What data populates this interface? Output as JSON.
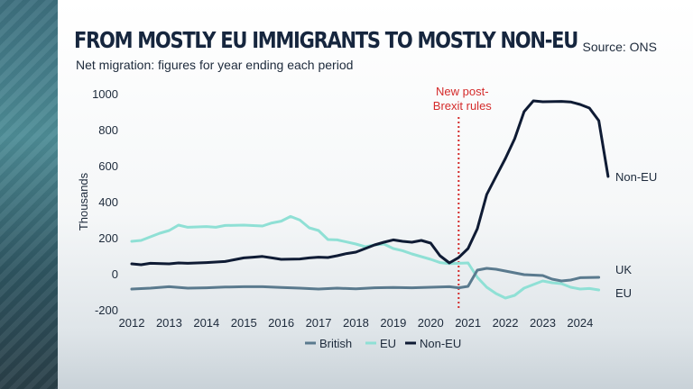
{
  "title": "FROM MOSTLY EU IMMIGRANTS TO MOSTLY NON-EU",
  "subtitle": "Net migration: figures for year ending each period",
  "source": "Source: ONS",
  "chart_data": {
    "type": "line",
    "ylabel": "Thousands",
    "ylim": [
      -200,
      1000
    ],
    "yticks": [
      1000,
      800,
      600,
      400,
      200,
      0,
      -200
    ],
    "xlim": [
      2012,
      2024.8
    ],
    "xticks": [
      2012,
      2013,
      2014,
      2015,
      2016,
      2017,
      2018,
      2019,
      2020,
      2021,
      2022,
      2023,
      2024
    ],
    "grid": false,
    "legend_position": "bottom-center",
    "annotation": {
      "x": 2020.75,
      "lines": [
        "New post-",
        "Brexit rules"
      ],
      "color": "#d42b2b"
    },
    "series": [
      {
        "name": "British",
        "end_label": "UK",
        "color": "#5a7a8e",
        "points": [
          [
            2012,
            -85
          ],
          [
            2012.5,
            -80
          ],
          [
            2013,
            -72
          ],
          [
            2013.5,
            -80
          ],
          [
            2014,
            -78
          ],
          [
            2014.5,
            -74
          ],
          [
            2015,
            -72
          ],
          [
            2015.5,
            -72
          ],
          [
            2016,
            -76
          ],
          [
            2016.5,
            -80
          ],
          [
            2017,
            -85
          ],
          [
            2017.5,
            -80
          ],
          [
            2018,
            -84
          ],
          [
            2018.5,
            -78
          ],
          [
            2019,
            -76
          ],
          [
            2019.5,
            -78
          ],
          [
            2020,
            -75
          ],
          [
            2020.5,
            -72
          ],
          [
            2020.75,
            -78
          ],
          [
            2021,
            -70
          ],
          [
            2021.25,
            20
          ],
          [
            2021.5,
            30
          ],
          [
            2021.75,
            25
          ],
          [
            2022,
            15
          ],
          [
            2022.5,
            -5
          ],
          [
            2023,
            -10
          ],
          [
            2023.25,
            -30
          ],
          [
            2023.5,
            -40
          ],
          [
            2023.75,
            -35
          ],
          [
            2024,
            -22
          ],
          [
            2024.5,
            -20
          ]
        ]
      },
      {
        "name": "EU",
        "end_label": "EU",
        "color": "#8fe0d5",
        "points": [
          [
            2012,
            180
          ],
          [
            2012.25,
            185
          ],
          [
            2012.5,
            205
          ],
          [
            2012.75,
            225
          ],
          [
            2013,
            240
          ],
          [
            2013.25,
            270
          ],
          [
            2013.5,
            258
          ],
          [
            2014,
            262
          ],
          [
            2014.25,
            258
          ],
          [
            2014.5,
            268
          ],
          [
            2015,
            270
          ],
          [
            2015.5,
            265
          ],
          [
            2015.75,
            282
          ],
          [
            2016,
            292
          ],
          [
            2016.25,
            318
          ],
          [
            2016.5,
            298
          ],
          [
            2016.75,
            255
          ],
          [
            2017,
            240
          ],
          [
            2017.25,
            190
          ],
          [
            2017.5,
            188
          ],
          [
            2018,
            165
          ],
          [
            2018.25,
            150
          ],
          [
            2018.5,
            160
          ],
          [
            2018.75,
            165
          ],
          [
            2019,
            140
          ],
          [
            2019.25,
            128
          ],
          [
            2019.5,
            110
          ],
          [
            2019.75,
            95
          ],
          [
            2020,
            80
          ],
          [
            2020.25,
            62
          ],
          [
            2020.5,
            56
          ],
          [
            2020.75,
            58
          ],
          [
            2021,
            60
          ],
          [
            2021.25,
            -20
          ],
          [
            2021.5,
            -75
          ],
          [
            2021.75,
            -110
          ],
          [
            2022,
            -135
          ],
          [
            2022.25,
            -120
          ],
          [
            2022.5,
            -80
          ],
          [
            2022.75,
            -60
          ],
          [
            2023,
            -40
          ],
          [
            2023.25,
            -50
          ],
          [
            2023.5,
            -55
          ],
          [
            2023.75,
            -75
          ],
          [
            2024,
            -85
          ],
          [
            2024.25,
            -82
          ],
          [
            2024.5,
            -90
          ]
        ]
      },
      {
        "name": "Non-EU",
        "end_label": "Non-EU",
        "color": "#0f1b34",
        "points": [
          [
            2012,
            55
          ],
          [
            2012.25,
            50
          ],
          [
            2012.5,
            58
          ],
          [
            2013,
            55
          ],
          [
            2013.25,
            60
          ],
          [
            2013.5,
            58
          ],
          [
            2014,
            62
          ],
          [
            2014.5,
            68
          ],
          [
            2014.75,
            78
          ],
          [
            2015,
            88
          ],
          [
            2015.25,
            92
          ],
          [
            2015.5,
            96
          ],
          [
            2015.75,
            88
          ],
          [
            2016,
            80
          ],
          [
            2016.5,
            82
          ],
          [
            2016.75,
            88
          ],
          [
            2017,
            92
          ],
          [
            2017.25,
            90
          ],
          [
            2017.5,
            100
          ],
          [
            2017.75,
            112
          ],
          [
            2018,
            120
          ],
          [
            2018.25,
            140
          ],
          [
            2018.5,
            160
          ],
          [
            2018.75,
            175
          ],
          [
            2019,
            188
          ],
          [
            2019.25,
            180
          ],
          [
            2019.5,
            175
          ],
          [
            2019.75,
            185
          ],
          [
            2020,
            170
          ],
          [
            2020.25,
            100
          ],
          [
            2020.5,
            60
          ],
          [
            2020.75,
            90
          ],
          [
            2021,
            140
          ],
          [
            2021.25,
            250
          ],
          [
            2021.5,
            440
          ],
          [
            2021.75,
            540
          ],
          [
            2022,
            640
          ],
          [
            2022.25,
            750
          ],
          [
            2022.5,
            900
          ],
          [
            2022.75,
            960
          ],
          [
            2023,
            955
          ],
          [
            2023.5,
            957
          ],
          [
            2023.75,
            954
          ],
          [
            2024,
            940
          ],
          [
            2024.25,
            920
          ],
          [
            2024.5,
            850
          ],
          [
            2024.75,
            540
          ]
        ]
      }
    ]
  }
}
